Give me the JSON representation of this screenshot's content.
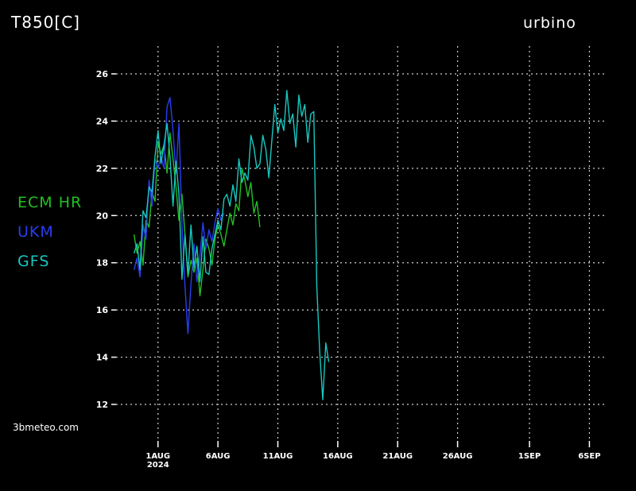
{
  "title": "T850[C]",
  "location": "urbino",
  "watermark": "3bmeteo.com",
  "legend": [
    {
      "label": "ECM HR",
      "color": "#22c022"
    },
    {
      "label": "UKM",
      "color": "#2a3ef0"
    },
    {
      "label": "GFS",
      "color": "#18c8c0"
    }
  ],
  "chart_data": {
    "type": "line",
    "title": "T850[C]",
    "subtitle": "urbino",
    "ylim": [
      11.5,
      26.5
    ],
    "yticks": [
      12,
      14,
      16,
      18,
      20,
      22,
      24,
      26
    ],
    "xlim": [
      "2024-07-28T12:00",
      "2024-09-07T12:00"
    ],
    "xticks": [
      {
        "label": "1AUG",
        "sublabel": "2024",
        "date": "2024-08-01"
      },
      {
        "label": "6AUG",
        "date": "2024-08-06"
      },
      {
        "label": "11AUG",
        "date": "2024-08-11"
      },
      {
        "label": "16AUG",
        "date": "2024-08-16"
      },
      {
        "label": "21AUG",
        "date": "2024-08-21"
      },
      {
        "label": "26AUG",
        "date": "2024-08-26"
      },
      {
        "label": "1SEP",
        "date": "2024-09-01"
      },
      {
        "label": "6SEP",
        "date": "2024-09-06"
      }
    ],
    "grid": true,
    "legend_position": "left",
    "series": [
      {
        "name": "ECM HR",
        "color": "#22c022",
        "points": [
          [
            "2024-07-30T00:00",
            19.2
          ],
          [
            "2024-07-30T06:00",
            18.4
          ],
          [
            "2024-07-30T12:00",
            18.9
          ],
          [
            "2024-07-30T18:00",
            17.9
          ],
          [
            "2024-07-31T00:00",
            19.8
          ],
          [
            "2024-07-31T06:00",
            19.5
          ],
          [
            "2024-07-31T12:00",
            21.0
          ],
          [
            "2024-07-31T18:00",
            20.6
          ],
          [
            "2024-08-01T00:00",
            23.1
          ],
          [
            "2024-08-01T06:00",
            22.6
          ],
          [
            "2024-08-01T12:00",
            23.0
          ],
          [
            "2024-08-01T18:00",
            21.8
          ],
          [
            "2024-08-02T00:00",
            23.5
          ],
          [
            "2024-08-02T06:00",
            22.4
          ],
          [
            "2024-08-02T12:00",
            21.2
          ],
          [
            "2024-08-02T18:00",
            19.8
          ],
          [
            "2024-08-03T00:00",
            20.9
          ],
          [
            "2024-08-03T06:00",
            19.2
          ],
          [
            "2024-08-03T12:00",
            17.4
          ],
          [
            "2024-08-03T18:00",
            18.1
          ],
          [
            "2024-08-04T00:00",
            17.6
          ],
          [
            "2024-08-04T06:00",
            18.2
          ],
          [
            "2024-08-04T12:00",
            16.6
          ],
          [
            "2024-08-04T18:00",
            17.7
          ],
          [
            "2024-08-05T00:00",
            19.0
          ],
          [
            "2024-08-05T06:00",
            18.6
          ],
          [
            "2024-08-05T12:00",
            17.9
          ],
          [
            "2024-08-05T18:00",
            19.0
          ],
          [
            "2024-08-06T00:00",
            19.6
          ],
          [
            "2024-08-06T06:00",
            19.2
          ],
          [
            "2024-08-06T12:00",
            18.7
          ],
          [
            "2024-08-06T18:00",
            19.4
          ],
          [
            "2024-08-07T00:00",
            20.1
          ],
          [
            "2024-08-07T06:00",
            19.6
          ],
          [
            "2024-08-07T12:00",
            20.5
          ],
          [
            "2024-08-07T18:00",
            20.2
          ],
          [
            "2024-08-08T00:00",
            22.0
          ],
          [
            "2024-08-08T06:00",
            21.5
          ],
          [
            "2024-08-08T12:00",
            20.8
          ],
          [
            "2024-08-08T18:00",
            21.4
          ],
          [
            "2024-08-09T00:00",
            20.1
          ],
          [
            "2024-08-09T06:00",
            20.6
          ],
          [
            "2024-08-09T12:00",
            19.5
          ]
        ]
      },
      {
        "name": "UKM",
        "color": "#2a3ef0",
        "points": [
          [
            "2024-07-30T00:00",
            17.7
          ],
          [
            "2024-07-30T06:00",
            18.2
          ],
          [
            "2024-07-30T12:00",
            17.4
          ],
          [
            "2024-07-30T18:00",
            19.6
          ],
          [
            "2024-07-31T00:00",
            19.0
          ],
          [
            "2024-07-31T06:00",
            21.5
          ],
          [
            "2024-07-31T12:00",
            20.4
          ],
          [
            "2024-07-31T18:00",
            22.4
          ],
          [
            "2024-08-01T00:00",
            22.0
          ],
          [
            "2024-08-01T06:00",
            22.5
          ],
          [
            "2024-08-01T12:00",
            22.0
          ],
          [
            "2024-08-01T18:00",
            24.6
          ],
          [
            "2024-08-02T00:00",
            25.0
          ],
          [
            "2024-08-02T06:00",
            23.6
          ],
          [
            "2024-08-02T12:00",
            21.8
          ],
          [
            "2024-08-02T18:00",
            23.9
          ],
          [
            "2024-08-03T00:00",
            19.6
          ],
          [
            "2024-08-03T06:00",
            17.0
          ],
          [
            "2024-08-03T12:00",
            15.0
          ],
          [
            "2024-08-03T18:00",
            17.1
          ],
          [
            "2024-08-04T00:00",
            18.8
          ],
          [
            "2024-08-04T06:00",
            17.2
          ],
          [
            "2024-08-04T12:00",
            18.3
          ],
          [
            "2024-08-04T18:00",
            19.7
          ],
          [
            "2024-08-05T00:00",
            18.6
          ],
          [
            "2024-08-05T06:00",
            19.4
          ],
          [
            "2024-08-05T12:00",
            18.9
          ],
          [
            "2024-08-05T18:00",
            19.7
          ],
          [
            "2024-08-06T00:00",
            20.3
          ],
          [
            "2024-08-06T06:00",
            19.8
          ],
          [
            "2024-08-06T12:00",
            20.1
          ]
        ]
      },
      {
        "name": "GFS",
        "color": "#18c8c0",
        "points": [
          [
            "2024-07-30T00:00",
            18.4
          ],
          [
            "2024-07-30T06:00",
            18.8
          ],
          [
            "2024-07-30T12:00",
            17.7
          ],
          [
            "2024-07-30T18:00",
            20.2
          ],
          [
            "2024-07-31T00:00",
            19.9
          ],
          [
            "2024-07-31T06:00",
            21.2
          ],
          [
            "2024-07-31T12:00",
            21.0
          ],
          [
            "2024-07-31T18:00",
            22.5
          ],
          [
            "2024-08-01T00:00",
            23.6
          ],
          [
            "2024-08-01T06:00",
            22.2
          ],
          [
            "2024-08-01T12:00",
            23.0
          ],
          [
            "2024-08-01T18:00",
            23.9
          ],
          [
            "2024-08-02T00:00",
            22.5
          ],
          [
            "2024-08-02T06:00",
            20.4
          ],
          [
            "2024-08-02T12:00",
            22.3
          ],
          [
            "2024-08-02T18:00",
            20.9
          ],
          [
            "2024-08-03T00:00",
            17.3
          ],
          [
            "2024-08-03T06:00",
            19.2
          ],
          [
            "2024-08-03T12:00",
            17.5
          ],
          [
            "2024-08-03T18:00",
            19.6
          ],
          [
            "2024-08-04T00:00",
            17.8
          ],
          [
            "2024-08-04T06:00",
            18.7
          ],
          [
            "2024-08-04T12:00",
            17.2
          ],
          [
            "2024-08-04T18:00",
            19.1
          ],
          [
            "2024-08-05T00:00",
            17.6
          ],
          [
            "2024-08-05T06:00",
            17.5
          ],
          [
            "2024-08-05T12:00",
            18.6
          ],
          [
            "2024-08-05T18:00",
            19.2
          ],
          [
            "2024-08-06T00:00",
            19.8
          ],
          [
            "2024-08-06T06:00",
            19.4
          ],
          [
            "2024-08-06T12:00",
            20.7
          ],
          [
            "2024-08-06T18:00",
            20.9
          ],
          [
            "2024-08-07T00:00",
            20.4
          ],
          [
            "2024-08-07T06:00",
            21.3
          ],
          [
            "2024-08-07T12:00",
            20.6
          ],
          [
            "2024-08-07T18:00",
            22.4
          ],
          [
            "2024-08-08T00:00",
            21.4
          ],
          [
            "2024-08-08T06:00",
            21.8
          ],
          [
            "2024-08-08T12:00",
            21.5
          ],
          [
            "2024-08-08T18:00",
            23.4
          ],
          [
            "2024-08-09T00:00",
            22.9
          ],
          [
            "2024-08-09T06:00",
            22.0
          ],
          [
            "2024-08-09T12:00",
            22.2
          ],
          [
            "2024-08-09T18:00",
            23.4
          ],
          [
            "2024-08-10T00:00",
            22.8
          ],
          [
            "2024-08-10T06:00",
            21.6
          ],
          [
            "2024-08-10T12:00",
            23.2
          ],
          [
            "2024-08-10T18:00",
            24.7
          ],
          [
            "2024-08-11T00:00",
            23.5
          ],
          [
            "2024-08-11T06:00",
            24.1
          ],
          [
            "2024-08-11T12:00",
            23.6
          ],
          [
            "2024-08-11T18:00",
            25.3
          ],
          [
            "2024-08-12T00:00",
            23.9
          ],
          [
            "2024-08-12T06:00",
            24.3
          ],
          [
            "2024-08-12T12:00",
            22.9
          ],
          [
            "2024-08-12T18:00",
            25.1
          ],
          [
            "2024-08-13T00:00",
            24.2
          ],
          [
            "2024-08-13T06:00",
            24.7
          ],
          [
            "2024-08-13T12:00",
            23.1
          ],
          [
            "2024-08-13T18:00",
            24.3
          ],
          [
            "2024-08-14T00:00",
            24.4
          ],
          [
            "2024-08-14T06:00",
            17.0
          ],
          [
            "2024-08-14T12:00",
            14.2
          ],
          [
            "2024-08-14T18:00",
            12.2
          ],
          [
            "2024-08-15T00:00",
            14.6
          ],
          [
            "2024-08-15T06:00",
            13.8
          ]
        ]
      }
    ]
  }
}
